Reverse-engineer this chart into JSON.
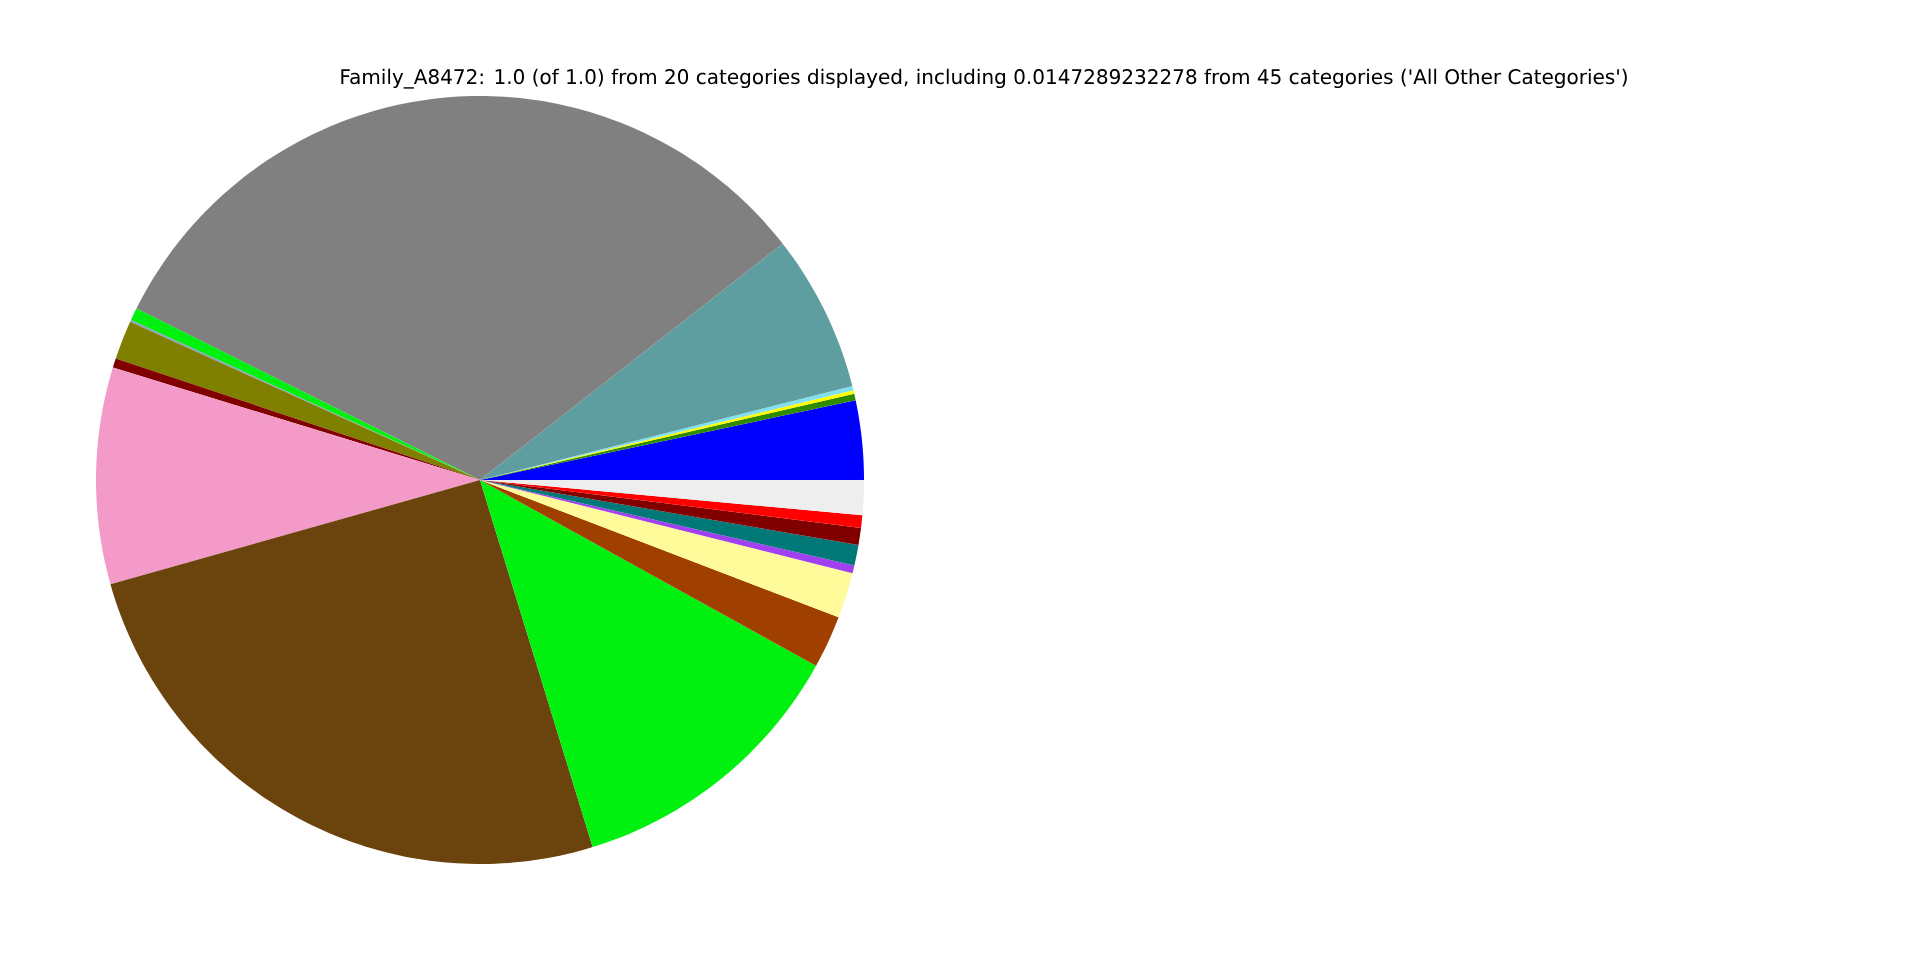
{
  "chart_data": {
    "type": "pie",
    "title": "Family_A8472: 1.0 (of 1.0) from 20 categories displayed, including 0.0147289232278 from 45 categories ('All Other Categories')",
    "categories": [
      null,
      null,
      null,
      null,
      null,
      null,
      null,
      null,
      null,
      null,
      null,
      null,
      null,
      null,
      null,
      null,
      null,
      null,
      null,
      null
    ],
    "values": [
      3.33,
      0.28,
      0.14,
      0.19,
      6.61,
      32.08,
      0.53,
      0.08,
      1.64,
      0.39,
      9.11,
      25.36,
      12.22,
      2.22,
      1.92,
      0.33,
      0.86,
      0.72,
      0.53,
      1.46
    ],
    "colors": [
      "#0000ff",
      "#2e8b00",
      "#ffff00",
      "#80e0f0",
      "#5f9ea0",
      "#808080",
      "#00f010",
      "#8aa0c0",
      "#808000",
      "#800000",
      "#f49ac8",
      "#6b430c",
      "#00f010",
      "#a04000",
      "#fffa9a",
      "#a040f0",
      "#007878",
      "#800000",
      "#ff0000",
      "#eeeeee"
    ]
  }
}
